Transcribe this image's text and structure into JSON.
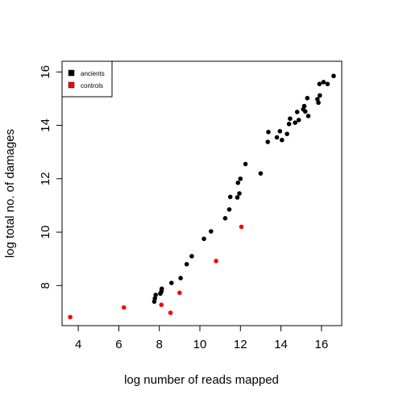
{
  "chart_data": {
    "type": "scatter",
    "xlabel": "log number of reads mapped",
    "ylabel": "log total no. of damages",
    "xlim": [
      3.2,
      17.0
    ],
    "ylim": [
      6.5,
      16.4
    ],
    "xticks": [
      4,
      6,
      8,
      10,
      12,
      14,
      16
    ],
    "yticks": [
      8,
      10,
      12,
      14,
      16
    ],
    "legend_position": "top-left",
    "grid": false,
    "series": [
      {
        "name": "ancients",
        "color": "#000000",
        "points": [
          [
            7.75,
            7.4
          ],
          [
            7.78,
            7.52
          ],
          [
            7.82,
            7.65
          ],
          [
            8.05,
            7.7
          ],
          [
            8.1,
            7.78
          ],
          [
            8.12,
            7.88
          ],
          [
            8.6,
            8.1
          ],
          [
            9.05,
            8.28
          ],
          [
            9.35,
            8.8
          ],
          [
            9.6,
            9.1
          ],
          [
            10.2,
            9.75
          ],
          [
            10.55,
            10.03
          ],
          [
            11.25,
            10.52
          ],
          [
            11.45,
            10.85
          ],
          [
            11.5,
            11.32
          ],
          [
            11.85,
            11.3
          ],
          [
            11.95,
            11.45
          ],
          [
            11.88,
            11.85
          ],
          [
            12.0,
            12.0
          ],
          [
            12.25,
            12.55
          ],
          [
            13.0,
            12.2
          ],
          [
            13.35,
            13.38
          ],
          [
            13.38,
            13.75
          ],
          [
            13.8,
            13.55
          ],
          [
            13.95,
            13.78
          ],
          [
            14.05,
            13.45
          ],
          [
            14.3,
            13.68
          ],
          [
            14.4,
            14.05
          ],
          [
            14.45,
            14.25
          ],
          [
            14.7,
            14.1
          ],
          [
            14.8,
            14.5
          ],
          [
            14.88,
            14.2
          ],
          [
            15.1,
            14.6
          ],
          [
            15.15,
            14.72
          ],
          [
            15.2,
            14.52
          ],
          [
            15.35,
            14.35
          ],
          [
            15.3,
            15.02
          ],
          [
            15.8,
            14.98
          ],
          [
            15.85,
            14.85
          ],
          [
            15.92,
            15.12
          ],
          [
            15.9,
            15.55
          ],
          [
            16.1,
            15.62
          ],
          [
            16.3,
            15.55
          ],
          [
            16.6,
            15.85
          ]
        ]
      },
      {
        "name": "controls",
        "color": "#ff0000",
        "points": [
          [
            3.6,
            6.82
          ],
          [
            6.25,
            7.18
          ],
          [
            8.1,
            7.28
          ],
          [
            8.55,
            6.98
          ],
          [
            9.0,
            7.73
          ],
          [
            10.8,
            8.92
          ],
          [
            12.05,
            10.2
          ]
        ]
      }
    ]
  }
}
